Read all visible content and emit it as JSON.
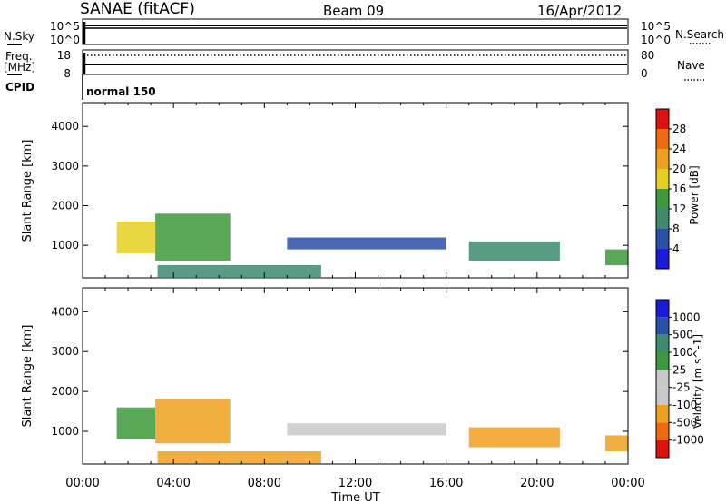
{
  "header": {
    "station": "SANAE (fitACF)",
    "beam": "Beam 09",
    "date": "16/Apr/2012"
  },
  "noise_panel": {
    "left_label": "N.Sky",
    "right_label": "N.Search",
    "left_ticks": [
      "10^5",
      "10^0"
    ],
    "right_ticks": [
      "10^5",
      "10^0"
    ]
  },
  "freq_panel": {
    "left_label_1": "Freq.",
    "left_label_2": "[MHz]",
    "right_label": "Nave",
    "left_ticks": [
      "18",
      "8"
    ],
    "right_ticks": [
      "80",
      "0"
    ]
  },
  "cpid": {
    "label": "CPID",
    "mode": "normal 150"
  },
  "time_axis": {
    "label": "Time UT",
    "ticks": [
      "00:00",
      "04:00",
      "08:00",
      "12:00",
      "16:00",
      "20:00",
      "00:00"
    ]
  },
  "colors": {
    "power": [
      "#1a1adc",
      "#2a4fa8",
      "#3d8a6e",
      "#3c9a3c",
      "#e5d020",
      "#f0a020",
      "#f06a10",
      "#e01010"
    ],
    "velocity": [
      "#e01010",
      "#f06a10",
      "#f0a020",
      "#c8c8c8",
      "#c8c8c8",
      "#3c9a3c",
      "#3d8a6e",
      "#2a4fa8",
      "#1a1adc"
    ]
  },
  "chart_data": [
    {
      "type": "heatmap",
      "title": "Power",
      "xlabel": "Time UT",
      "ylabel": "Slant Range [km]",
      "xlim": [
        "00:00",
        "24:00"
      ],
      "ylim": [
        180,
        4600
      ],
      "yticks": [
        "1000",
        "2000",
        "3000",
        "4000"
      ],
      "colorbar": {
        "label": "Power [dB]",
        "ticks": [
          "4",
          "8",
          "12",
          "16",
          "20",
          "24",
          "28"
        ],
        "range": [
          0,
          30
        ]
      },
      "echo_regions": [
        {
          "t_start": 1.5,
          "t_end": 3.2,
          "range_start": 800,
          "range_end": 1600,
          "power_db": 18
        },
        {
          "t_start": 3.2,
          "t_end": 6.5,
          "range_start": 600,
          "range_end": 1800,
          "power_db": 14
        },
        {
          "t_start": 3.3,
          "t_end": 10.5,
          "range_start": 200,
          "range_end": 500,
          "power_db": 10
        },
        {
          "t_start": 9.0,
          "t_end": 16.0,
          "range_start": 900,
          "range_end": 1200,
          "power_db": 6
        },
        {
          "t_start": 17.0,
          "t_end": 21.0,
          "range_start": 600,
          "range_end": 1100,
          "power_db": 8
        },
        {
          "t_start": 23.0,
          "t_end": 24.0,
          "range_start": 500,
          "range_end": 900,
          "power_db": 14
        }
      ]
    },
    {
      "type": "heatmap",
      "title": "Velocity",
      "xlabel": "Time UT",
      "ylabel": "Slant Range [km]",
      "xlim": [
        "00:00",
        "24:00"
      ],
      "ylim": [
        180,
        4600
      ],
      "yticks": [
        "1000",
        "2000",
        "3000",
        "4000"
      ],
      "colorbar": {
        "label": "Velocity [m s^-1]",
        "ticks": [
          "1000",
          "500",
          "100",
          "25",
          "-25",
          "-100",
          "-500",
          "-1000"
        ]
      },
      "echo_regions": [
        {
          "t_start": 1.5,
          "t_end": 3.2,
          "range_start": 800,
          "range_end": 1600,
          "velocity": 100
        },
        {
          "t_start": 3.2,
          "t_end": 6.5,
          "range_start": 700,
          "range_end": 1800,
          "velocity": -300
        },
        {
          "t_start": 3.3,
          "t_end": 10.5,
          "range_start": 200,
          "range_end": 500,
          "velocity": -200
        },
        {
          "t_start": 9.0,
          "t_end": 16.0,
          "range_start": 900,
          "range_end": 1200,
          "velocity": 0
        },
        {
          "t_start": 17.0,
          "t_end": 21.0,
          "range_start": 600,
          "range_end": 1100,
          "velocity": -150
        },
        {
          "t_start": 23.0,
          "t_end": 24.0,
          "range_start": 500,
          "range_end": 900,
          "velocity": -400
        }
      ]
    }
  ]
}
